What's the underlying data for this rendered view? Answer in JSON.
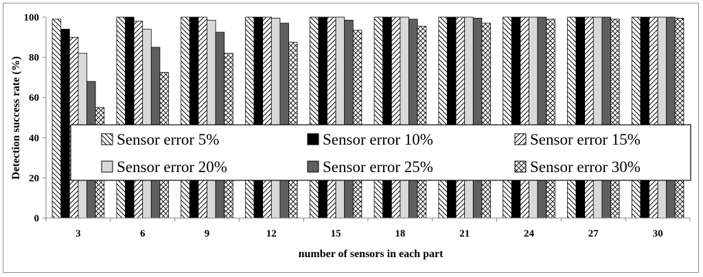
{
  "chart_data": {
    "type": "bar",
    "xlabel": "number of sensors in each part",
    "ylabel": "Detection success rate (%)",
    "categories": [
      "3",
      "6",
      "9",
      "12",
      "15",
      "18",
      "21",
      "24",
      "27",
      "30"
    ],
    "ylim": [
      0,
      100
    ],
    "yticks": [
      0,
      20,
      40,
      60,
      80,
      100
    ],
    "grid": false,
    "legend_position": "center, inside plot area",
    "series": [
      {
        "name": "Sensor error 5%",
        "pattern": "diagonal-backslash",
        "color": "#ffffff",
        "values": [
          99,
          100,
          100,
          100,
          100,
          100,
          100,
          100,
          100,
          100
        ]
      },
      {
        "name": "Sensor error 10%",
        "pattern": "solid",
        "color": "#000000",
        "values": [
          94,
          100,
          100,
          100,
          100,
          100,
          100,
          100,
          100,
          100
        ]
      },
      {
        "name": "Sensor error 15%",
        "pattern": "diagonal-slash",
        "color": "#ffffff",
        "values": [
          90,
          98,
          100,
          100,
          100,
          100,
          100,
          100,
          100,
          100
        ]
      },
      {
        "name": "Sensor error 20%",
        "pattern": "solid",
        "color": "#d9d9d9",
        "values": [
          82,
          94,
          98.5,
          99.5,
          100,
          100,
          100,
          100,
          100,
          100
        ]
      },
      {
        "name": "Sensor error 25%",
        "pattern": "solid",
        "color": "#5f5f5f",
        "values": [
          68,
          85,
          92.5,
          97,
          98.5,
          99,
          99.5,
          100,
          100,
          100
        ]
      },
      {
        "name": "Sensor error 30%",
        "pattern": "crosshatch",
        "color": "#ffffff",
        "values": [
          55,
          72.5,
          82,
          87.5,
          93.5,
          95.5,
          97,
          99,
          99,
          99.5
        ]
      }
    ]
  }
}
